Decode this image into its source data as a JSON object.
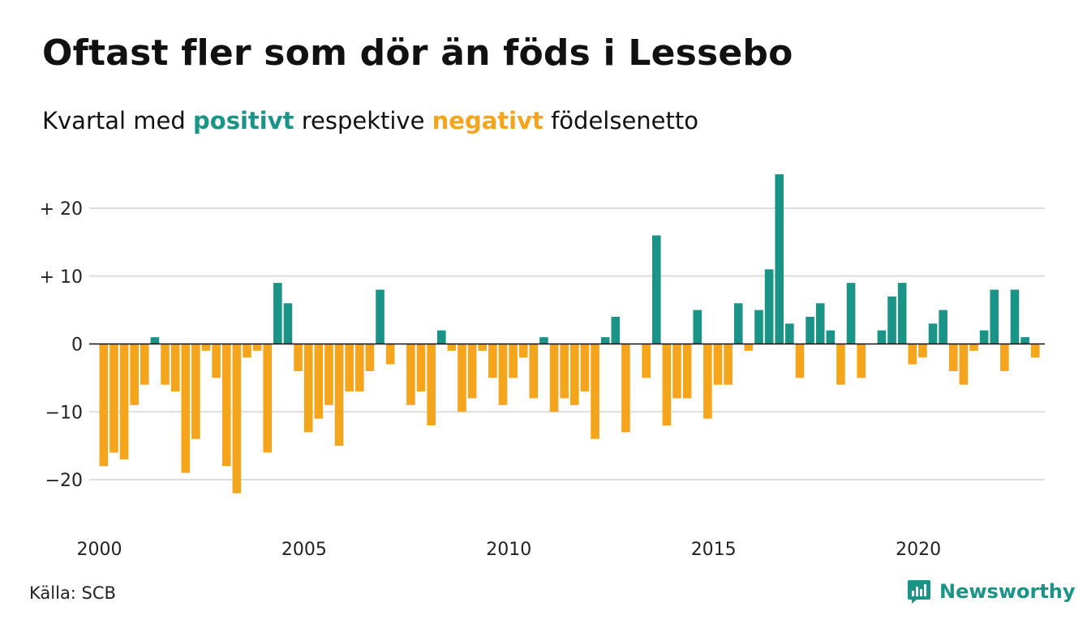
{
  "title": "Oftast fler som dör än föds i Lessebo",
  "subtitle": {
    "part1": "Kvartal med ",
    "positive": "positivt",
    "part2": " respektive ",
    "negative": "negativt",
    "part3": " födelsenetto"
  },
  "source": "Källa: SCB",
  "logo_text": "Newsworthy",
  "colors": {
    "positive": "#1a9487",
    "negative": "#f5a51c",
    "grid": "#dddddd"
  },
  "chart_data": {
    "type": "bar",
    "x_start_year": 2000,
    "periods_per_year": 4,
    "values": [
      -18,
      -16,
      -17,
      -9,
      -6,
      1,
      -6,
      -7,
      -19,
      -14,
      -1,
      -5,
      -18,
      -22,
      -2,
      -1,
      -16,
      9,
      6,
      -4,
      -13,
      -11,
      -9,
      -15,
      -7,
      -7,
      -4,
      8,
      -3,
      0,
      -9,
      -7,
      -12,
      2,
      -1,
      -10,
      -8,
      -1,
      -5,
      -9,
      -5,
      -2,
      -8,
      1,
      -10,
      -8,
      -9,
      -7,
      -14,
      1,
      4,
      -13,
      0,
      -5,
      16,
      -12,
      -8,
      -8,
      5,
      -11,
      -6,
      -6,
      6,
      -1,
      5,
      11,
      25,
      3,
      -5,
      4,
      6,
      2,
      -6,
      9,
      -5,
      0,
      2,
      7,
      9,
      -3,
      -2,
      3,
      5,
      -4,
      -6,
      -1,
      2,
      8,
      -4,
      8,
      1,
      -2
    ],
    "x_tick_labels": [
      "2000",
      "2005",
      "2010",
      "2015",
      "2020"
    ],
    "y_ticks": [
      {
        "value": 20,
        "label": "+ 20"
      },
      {
        "value": 10,
        "label": "+ 10"
      },
      {
        "value": 0,
        "label": "0"
      },
      {
        "value": -10,
        "label": "−10"
      },
      {
        "value": -20,
        "label": "−20"
      }
    ],
    "ylim": [
      -26,
      27
    ],
    "grid": true,
    "legend": "none"
  }
}
